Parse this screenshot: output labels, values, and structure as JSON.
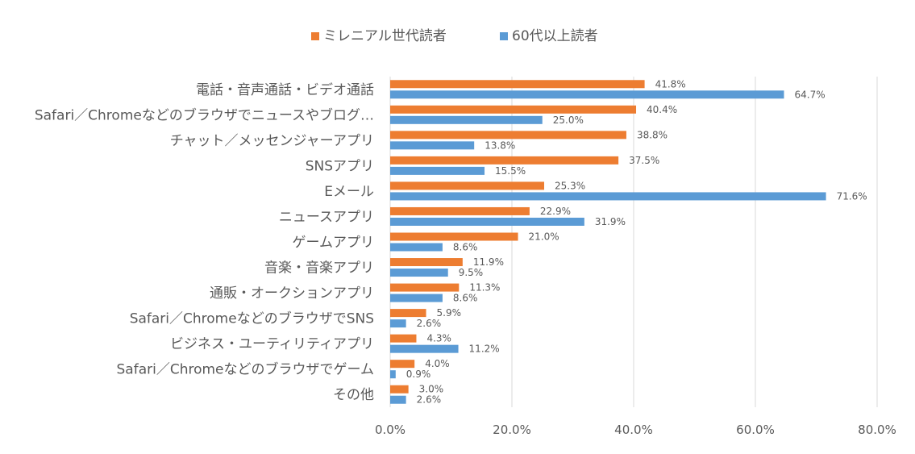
{
  "chart_data": {
    "type": "bar",
    "orientation": "horizontal",
    "categories": [
      "電話・音声通話・ビデオ通話",
      "Safari／Chromeなどのブラウザでニュースやブログ…",
      "チャット／メッセンジャーアプリ",
      "SNSアプリ",
      "Eメール",
      "ニュースアプリ",
      "ゲームアプリ",
      "音楽・音楽アプリ",
      "通販・オークションアプリ",
      "Safari／ChromeなどのブラウザでSNS",
      "ビジネス・ユーティリティアプリ",
      "Safari／Chromeなどのブラウザでゲーム",
      "その他"
    ],
    "series": [
      {
        "name": "ミレニアル世代読者",
        "color": "#ED7D31",
        "values": [
          41.8,
          40.4,
          38.8,
          37.5,
          25.3,
          22.9,
          21.0,
          11.9,
          11.3,
          5.9,
          4.3,
          4.0,
          3.0
        ],
        "labels": [
          "41.8%",
          "40.4%",
          "38.8%",
          "37.5%",
          "25.3%",
          "22.9%",
          "21.0%",
          "11.9%",
          "11.3%",
          "5.9%",
          "4.3%",
          "4.0%",
          "3.0%"
        ]
      },
      {
        "name": "60代以上読者",
        "color": "#5B9BD5",
        "values": [
          64.7,
          25.0,
          13.8,
          15.5,
          71.6,
          31.9,
          8.6,
          9.5,
          8.6,
          2.6,
          11.2,
          0.9,
          2.6
        ],
        "labels": [
          "64.7%",
          "25.0%",
          "13.8%",
          "15.5%",
          "71.6%",
          "31.9%",
          "8.6%",
          "9.5%",
          "8.6%",
          "2.6%",
          "11.2%",
          "0.9%",
          "2.6%"
        ]
      }
    ],
    "xlim": [
      0,
      80
    ],
    "xticks": [
      0,
      20,
      40,
      60,
      80
    ],
    "xtick_labels": [
      "0.0%",
      "20.0%",
      "40.0%",
      "60.0%",
      "80.0%"
    ],
    "grid": "vertical",
    "legend": "top-center",
    "title": "",
    "xlabel": "",
    "ylabel": ""
  },
  "colors": {
    "grid": "#D9D9D9",
    "category_text": "#595959",
    "label_text": "#595959",
    "legend_text": "#595959"
  }
}
